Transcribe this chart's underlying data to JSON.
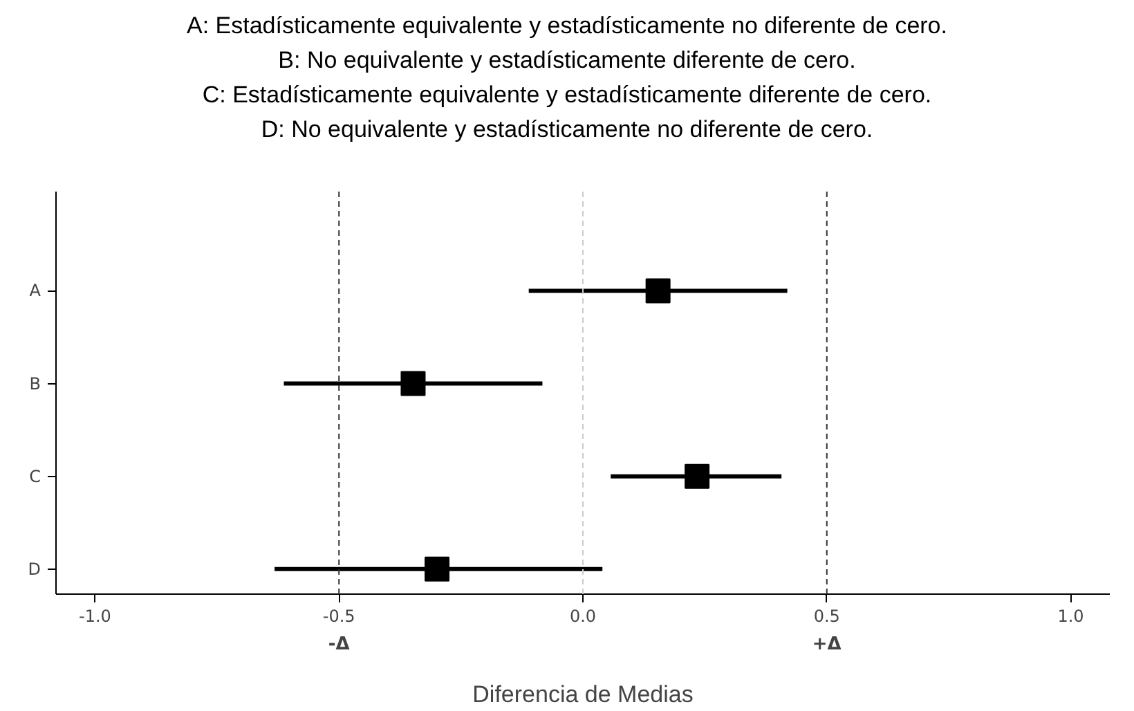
{
  "chart_data": {
    "type": "scatter",
    "orientation": "horizontal",
    "title": "A: Estadísticamente equivalente y estadísticamente no diferente de cero.\nB: No equivalente y estadísticamente diferente de cero.\nC: Estadísticamente equivalente y estadísticamente diferente de cero.\nD: No equivalente y estadísticamente no diferente de cero.",
    "xlabel": "Diferencia de Medias",
    "categories": [
      "A",
      "B",
      "C",
      "D"
    ],
    "values": [
      0.154,
      -0.348,
      0.234,
      -0.299
    ],
    "errors": [
      [
        -0.111,
        0.419
      ],
      [
        -0.613,
        -0.083
      ],
      [
        0.057,
        0.407
      ],
      [
        -0.632,
        0.04
      ]
    ],
    "color": "#000000",
    "marker": "square",
    "xlim": [
      -1.08,
      1.08
    ],
    "xticks": [
      {
        "value": -1,
        "label": "-1.0"
      },
      {
        "value": -0.5,
        "label": "-0.5"
      },
      {
        "value": 0,
        "label": "0.0"
      },
      {
        "value": 0.5,
        "label": "0.5"
      },
      {
        "value": 1,
        "label": "1.0"
      }
    ],
    "ref_lines": [
      {
        "axis": "x",
        "value": -0.5,
        "label": "-Δ",
        "color": "#333333",
        "line_style": "dashed"
      },
      {
        "axis": "x",
        "value": 0,
        "label": null,
        "color": "#cccccc",
        "line_style": "dashed"
      },
      {
        "axis": "x",
        "value": 0.5,
        "label": "+Δ",
        "color": "#333333",
        "line_style": "dashed"
      }
    ],
    "grid": false
  }
}
